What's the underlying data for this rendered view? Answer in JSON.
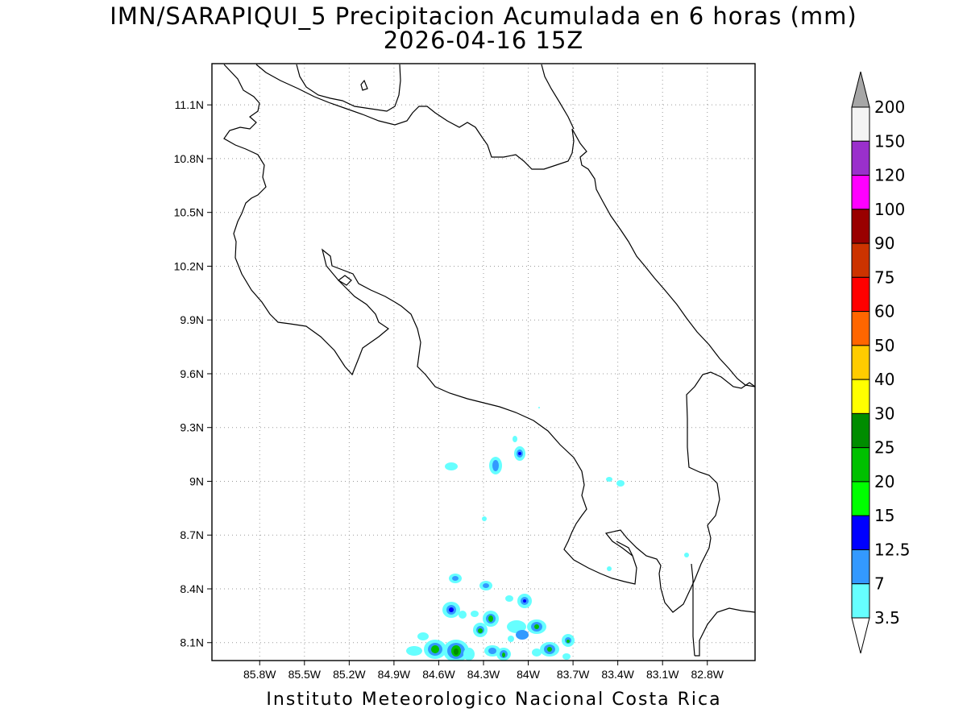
{
  "title": {
    "line1": "IMN/SARAPIQUI_5 Precipitacion Acumulada en 6 horas (mm)",
    "line2": "2026-04-16 15Z"
  },
  "credit": "Instituto Meteorologico Nacional Costa Rica",
  "map": {
    "lon_range": [
      -86.12,
      -82.48
    ],
    "lat_range": [
      8.0,
      11.33
    ],
    "lon_ticks": [
      "85.8W",
      "85.5W",
      "85.2W",
      "84.9W",
      "84.6W",
      "84.3W",
      "84W",
      "83.7W",
      "83.4W",
      "83.1W",
      "82.8W"
    ],
    "lat_ticks": [
      "8.1N",
      "8.4N",
      "8.7N",
      "9N",
      "9.3N",
      "9.6N",
      "9.9N",
      "10.2N",
      "10.5N",
      "10.8N",
      "11.1N"
    ],
    "grid": "dotted",
    "coastline_color": "#000000"
  },
  "colorbar": {
    "levels": [
      "200",
      "150",
      "120",
      "100",
      "90",
      "75",
      "60",
      "50",
      "40",
      "30",
      "25",
      "20",
      "15",
      "12.5",
      "7",
      "3.5"
    ],
    "colors_top_to_bottom": [
      "#f4f4f4",
      "#9a30cc",
      "#ff00ff",
      "#990000",
      "#cc3300",
      "#ff0000",
      "#ff6600",
      "#ffcc00",
      "#ffff00",
      "#008c00",
      "#00c000",
      "#00ff00",
      "#0000ff",
      "#3399ff",
      "#66ffff"
    ],
    "top_arrow_color": "#a6a6a6",
    "bottom_arrow_color": "#ffffff"
  }
}
